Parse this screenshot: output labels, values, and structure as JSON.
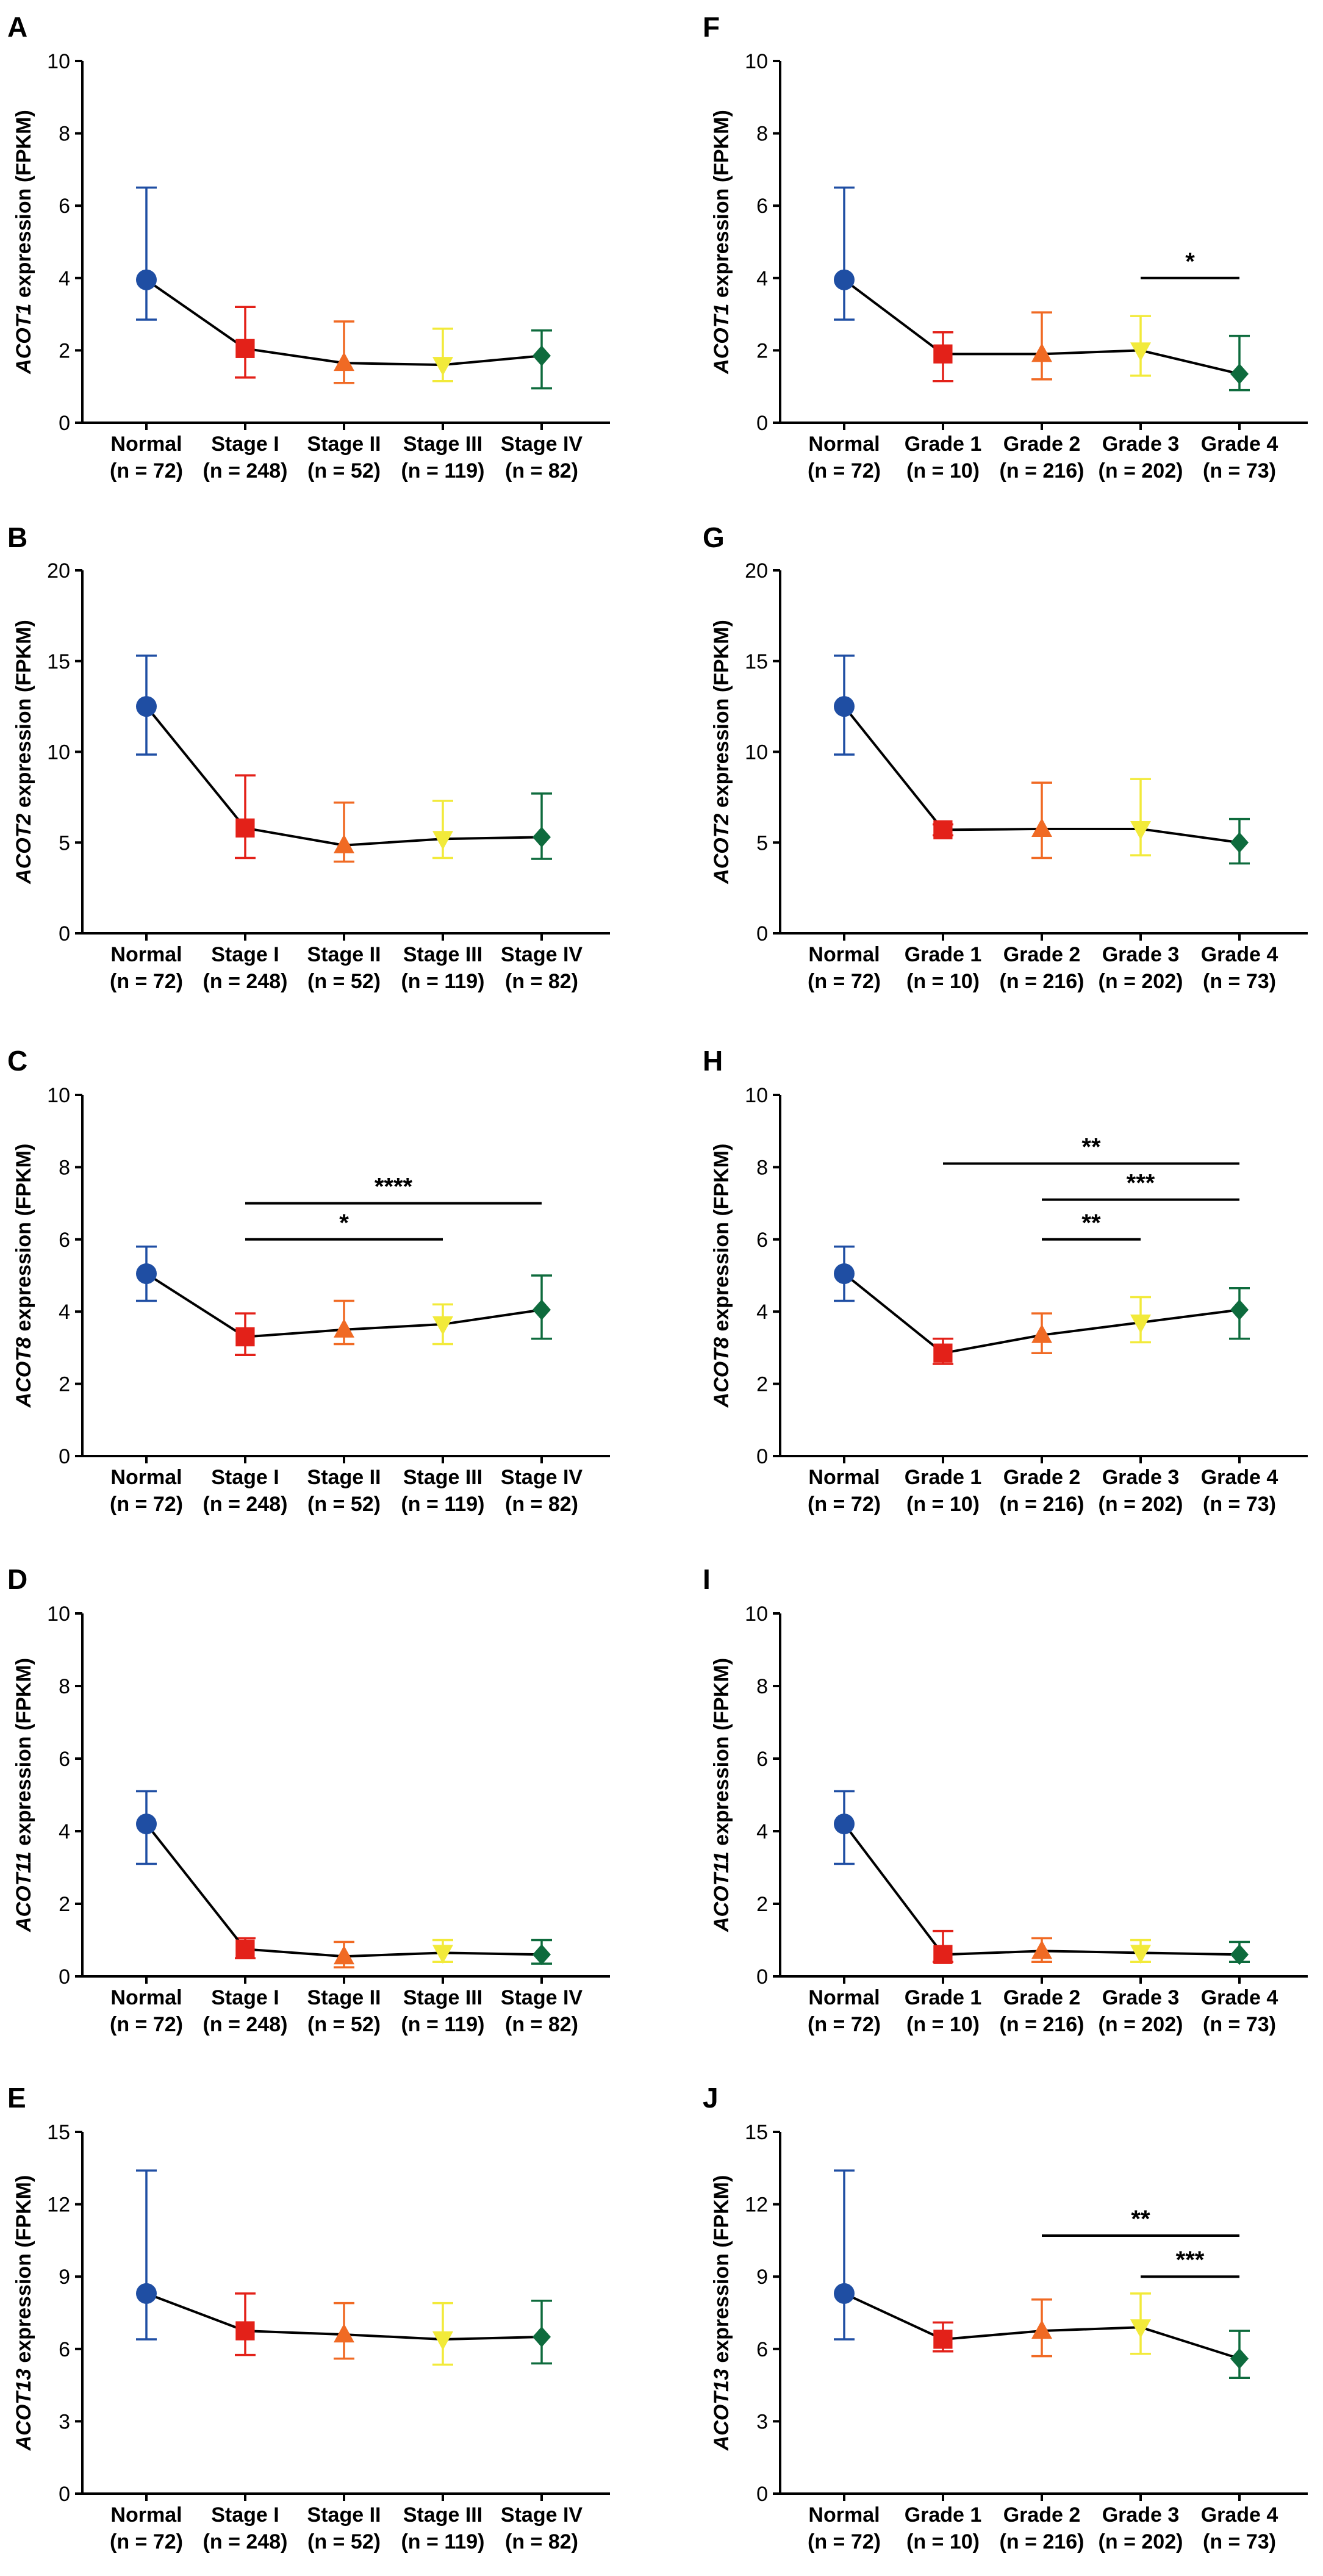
{
  "colors": {
    "normal": "#1f4ea3",
    "g1": "#e32119",
    "g2": "#f06a24",
    "g3": "#f2ea3a",
    "g4": "#0e6b3d",
    "axis": "#000000",
    "line": "#000000"
  },
  "groups": {
    "stage": {
      "labels": [
        "Normal",
        "Stage I",
        "Stage II",
        "Stage III",
        "Stage IV"
      ],
      "ns": [
        "(n = 72)",
        "(n = 248)",
        "(n = 52)",
        "(n = 119)",
        "(n = 82)"
      ]
    },
    "grade": {
      "labels": [
        "Normal",
        "Grade 1",
        "Grade 2",
        "Grade 3",
        "Grade 4"
      ],
      "ns": [
        "(n = 72)",
        "(n = 10)",
        "(n = 216)",
        "(n = 202)",
        "(n = 73)"
      ]
    }
  },
  "chart_data": [
    {
      "panel": "A",
      "type": "line",
      "gene": "ACOT1",
      "ylabel_suffix": " expression (FPKM)",
      "group": "stage",
      "ylim": [
        0,
        10
      ],
      "ticks": [
        0,
        2,
        4,
        6,
        8,
        10
      ],
      "values": [
        3.95,
        2.05,
        1.65,
        1.6,
        1.85
      ],
      "err_low": [
        2.85,
        1.25,
        1.1,
        1.15,
        0.95
      ],
      "err_high": [
        6.5,
        3.2,
        2.8,
        2.6,
        2.55
      ],
      "sig": []
    },
    {
      "panel": "F",
      "type": "line",
      "gene": "ACOT1",
      "ylabel_suffix": " expression (FPKM)",
      "group": "grade",
      "ylim": [
        0,
        10
      ],
      "ticks": [
        0,
        2,
        4,
        6,
        8,
        10
      ],
      "values": [
        3.95,
        1.9,
        1.9,
        2.0,
        1.35
      ],
      "err_low": [
        2.85,
        1.15,
        1.2,
        1.3,
        0.9
      ],
      "err_high": [
        6.5,
        2.5,
        3.05,
        2.95,
        2.4
      ],
      "sig": [
        {
          "from": 3,
          "to": 4,
          "y": 4.0,
          "label": "*"
        }
      ]
    },
    {
      "panel": "B",
      "type": "line",
      "gene": "ACOT2",
      "ylabel_suffix": " expression (FPKM)",
      "group": "stage",
      "ylim": [
        0,
        20
      ],
      "ticks": [
        0,
        5,
        10,
        15,
        20
      ],
      "values": [
        12.5,
        5.8,
        4.85,
        5.2,
        5.3
      ],
      "err_low": [
        9.85,
        4.15,
        3.95,
        4.15,
        4.1
      ],
      "err_high": [
        15.3,
        8.7,
        7.2,
        7.3,
        7.7
      ],
      "sig": []
    },
    {
      "panel": "G",
      "type": "line",
      "gene": "ACOT2",
      "ylabel_suffix": " expression (FPKM)",
      "group": "grade",
      "ylim": [
        0,
        20
      ],
      "ticks": [
        0,
        5,
        10,
        15,
        20
      ],
      "values": [
        12.5,
        5.7,
        5.75,
        5.75,
        5.0
      ],
      "err_low": [
        9.85,
        5.4,
        4.15,
        4.3,
        3.85
      ],
      "err_high": [
        15.3,
        6.0,
        8.3,
        8.5,
        6.3
      ],
      "sig": []
    },
    {
      "panel": "C",
      "type": "line",
      "gene": "ACOT8",
      "ylabel_suffix": " expression (FPKM)",
      "group": "stage",
      "ylim": [
        0,
        10
      ],
      "ticks": [
        0,
        2,
        4,
        6,
        8,
        10
      ],
      "values": [
        5.05,
        3.3,
        3.5,
        3.65,
        4.05
      ],
      "err_low": [
        4.3,
        2.8,
        3.1,
        3.1,
        3.25
      ],
      "err_high": [
        5.8,
        3.95,
        4.3,
        4.2,
        5.0
      ],
      "sig": [
        {
          "from": 1,
          "to": 3,
          "y": 6.0,
          "label": "*"
        },
        {
          "from": 1,
          "to": 4,
          "y": 7.0,
          "label": "****"
        }
      ]
    },
    {
      "panel": "H",
      "type": "line",
      "gene": "ACOT8",
      "ylabel_suffix": " expression (FPKM)",
      "group": "grade",
      "ylim": [
        0,
        10
      ],
      "ticks": [
        0,
        2,
        4,
        6,
        8,
        10
      ],
      "values": [
        5.05,
        2.85,
        3.35,
        3.7,
        4.05
      ],
      "err_low": [
        4.3,
        2.55,
        2.85,
        3.15,
        3.25
      ],
      "err_high": [
        5.8,
        3.25,
        3.95,
        4.4,
        4.65
      ],
      "sig": [
        {
          "from": 2,
          "to": 3,
          "y": 6.0,
          "label": "**"
        },
        {
          "from": 2,
          "to": 4,
          "y": 7.1,
          "label": "***"
        },
        {
          "from": 1,
          "to": 4,
          "y": 8.1,
          "label": "**"
        }
      ]
    },
    {
      "panel": "D",
      "type": "line",
      "gene": "ACOT11",
      "ylabel_suffix": " expression (FPKM)",
      "group": "stage",
      "ylim": [
        0,
        10
      ],
      "ticks": [
        0,
        2,
        4,
        6,
        8,
        10
      ],
      "values": [
        4.2,
        0.75,
        0.55,
        0.65,
        0.6
      ],
      "err_low": [
        3.1,
        0.5,
        0.25,
        0.4,
        0.35
      ],
      "err_high": [
        5.1,
        1.05,
        0.95,
        1.0,
        1.0
      ],
      "sig": []
    },
    {
      "panel": "I",
      "type": "line",
      "gene": "ACOT11",
      "ylabel_suffix": " expression (FPKM)",
      "group": "grade",
      "ylim": [
        0,
        10
      ],
      "ticks": [
        0,
        2,
        4,
        6,
        8,
        10
      ],
      "values": [
        4.2,
        0.6,
        0.7,
        0.65,
        0.6
      ],
      "err_low": [
        3.1,
        0.4,
        0.4,
        0.4,
        0.4
      ],
      "err_high": [
        5.1,
        1.25,
        1.05,
        1.0,
        0.95
      ],
      "sig": []
    },
    {
      "panel": "E",
      "type": "line",
      "gene": "ACOT13",
      "ylabel_suffix": " expression (FPKM)",
      "group": "stage",
      "ylim": [
        0,
        15
      ],
      "ticks": [
        0,
        3,
        6,
        9,
        12,
        15
      ],
      "values": [
        8.3,
        6.75,
        6.6,
        6.4,
        6.5
      ],
      "err_low": [
        6.4,
        5.75,
        5.6,
        5.35,
        5.4
      ],
      "err_high": [
        13.4,
        8.3,
        7.9,
        7.9,
        8.0
      ],
      "sig": []
    },
    {
      "panel": "J",
      "type": "line",
      "gene": "ACOT13",
      "ylabel_suffix": " expression (FPKM)",
      "group": "grade",
      "ylim": [
        0,
        15
      ],
      "ticks": [
        0,
        3,
        6,
        9,
        12,
        15
      ],
      "values": [
        8.3,
        6.4,
        6.75,
        6.9,
        5.6
      ],
      "err_low": [
        6.4,
        5.9,
        5.7,
        5.8,
        4.8
      ],
      "err_high": [
        13.4,
        7.1,
        8.05,
        8.3,
        6.75
      ],
      "sig": [
        {
          "from": 3,
          "to": 4,
          "y": 9.0,
          "label": "***"
        },
        {
          "from": 2,
          "to": 4,
          "y": 10.7,
          "label": "**"
        }
      ]
    }
  ]
}
